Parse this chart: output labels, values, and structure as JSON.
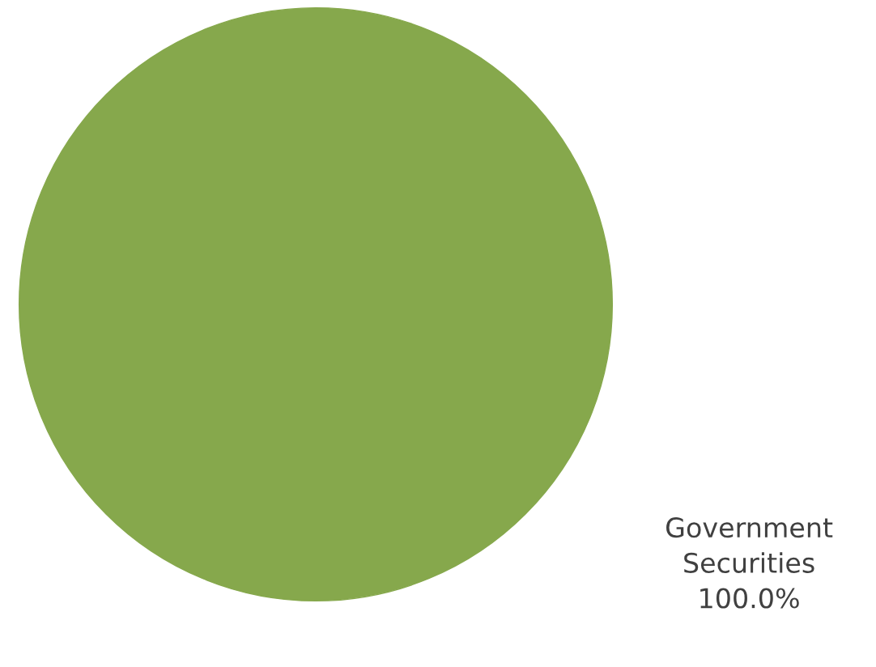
{
  "chart_data": {
    "type": "pie",
    "categories": [
      "Government Securities"
    ],
    "values": [
      100
    ],
    "value_labels": [
      "100.0%"
    ],
    "colors": [
      "#86a84c"
    ]
  }
}
